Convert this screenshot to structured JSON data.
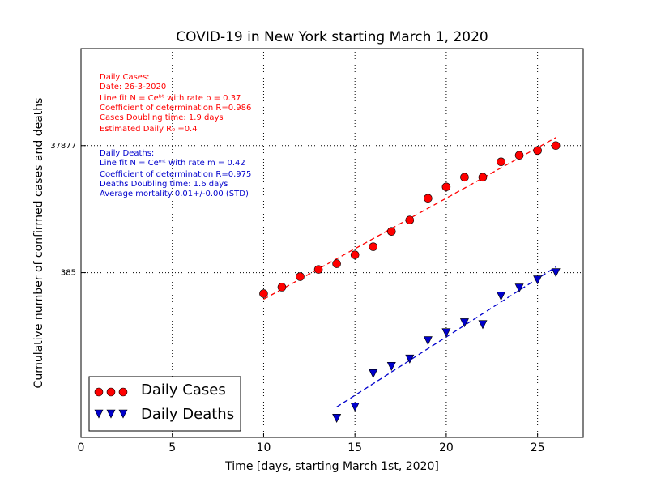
{
  "chart_data": {
    "type": "scatter",
    "title": "COVID-19 in New York starting March 1, 2020",
    "x_label": "Time [days, starting March 1st, 2020]",
    "y_label": "Cumulative number of confirmed cases and deaths",
    "xlim": [
      0,
      27.5
    ],
    "xticks": [
      0,
      5,
      10,
      15,
      20,
      25
    ],
    "ylim": [
      1,
      1260000
    ],
    "yticks": [
      385,
      37877
    ],
    "log_y": true,
    "grid": true,
    "legend_position": "lower left",
    "series": [
      {
        "name": "Daily Cases",
        "color": "#ff0000",
        "marker": "circle",
        "x": [
          10,
          11,
          12,
          13,
          14,
          15,
          16,
          17,
          18,
          19,
          20,
          21,
          22,
          23,
          24,
          25,
          26
        ],
        "values": [
          180,
          228,
          333,
          432,
          531,
          731,
          980,
          1706,
          2570,
          5650,
          8510,
          12080,
          12080,
          21080,
          26620,
          31700,
          37877
        ]
      },
      {
        "name": "Daily Deaths",
        "color": "#0000cc",
        "marker": "triangle-down",
        "x": [
          14,
          15,
          16,
          17,
          18,
          19,
          20,
          21,
          22,
          23,
          24,
          25,
          26
        ],
        "values": [
          2,
          3,
          10,
          13,
          17,
          33,
          44,
          63,
          59,
          165,
          221,
          296,
          385
        ]
      }
    ],
    "fits": [
      {
        "color": "#ff0000",
        "x": [
          10,
          26
        ],
        "values": [
          147,
          50600
        ]
      },
      {
        "color": "#0000cc",
        "x": [
          14,
          26
        ],
        "values": [
          3,
          472
        ]
      }
    ],
    "annotations": [
      {
        "color": "#ff0000",
        "lines": [
          "Daily Cases:",
          "Date: 26-3-2020",
          "Line fit N = Ceᵇᵗ with rate b = 0.37",
          "Coefficient of determination R=0.986",
          "Cases Doubling time: 1.9 days",
          "Estimated Daily R₀ =0.4"
        ]
      },
      {
        "color": "#0000cc",
        "lines": [
          "Daily Deaths:",
          "Line fit N = Ceᵐᵗ with rate m = 0.42",
          "Coefficient of determination R=0.975",
          "Deaths Doubling time: 1.6 days",
          "Average mortality 0.01+/-0.00 (STD)"
        ]
      }
    ]
  }
}
